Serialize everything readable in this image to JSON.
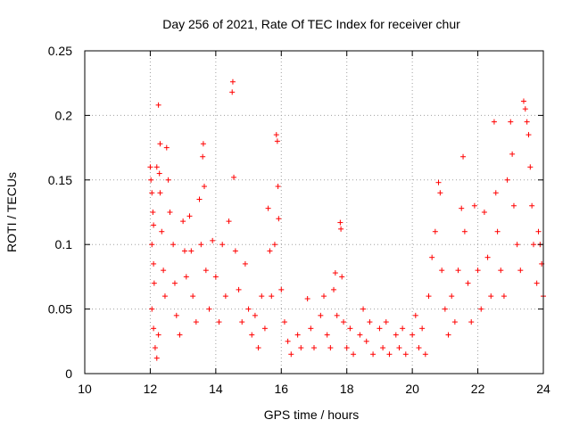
{
  "chart_data": {
    "type": "scatter",
    "title": "Day 256 of 2021, Rate Of TEC Index for receiver chur",
    "xlabel": "GPS time / hours",
    "ylabel": "ROTI / TECUs",
    "xlim": [
      10,
      24
    ],
    "ylim": [
      0,
      0.25
    ],
    "x_ticks": [
      10,
      12,
      14,
      16,
      18,
      20,
      22,
      24
    ],
    "y_ticks": [
      0,
      0.05,
      0.1,
      0.15,
      0.2,
      0.25
    ],
    "x_tick_labels": [
      "10",
      "12",
      "14",
      "16",
      "18",
      "20",
      "22",
      "24"
    ],
    "y_tick_labels": [
      "0",
      "0.05",
      "0.1",
      "0.15",
      "0.2",
      "0.25"
    ],
    "grid": true,
    "marker": "plus",
    "color": "#ff0000",
    "series": [
      {
        "points": [
          [
            12.0,
            0.16
          ],
          [
            12.02,
            0.15
          ],
          [
            12.05,
            0.14
          ],
          [
            12.08,
            0.125
          ],
          [
            12.1,
            0.115
          ],
          [
            12.05,
            0.1
          ],
          [
            12.1,
            0.085
          ],
          [
            12.12,
            0.07
          ],
          [
            12.05,
            0.05
          ],
          [
            12.1,
            0.035
          ],
          [
            12.15,
            0.02
          ],
          [
            12.2,
            0.012
          ],
          [
            12.25,
            0.03
          ],
          [
            12.2,
            0.16
          ],
          [
            12.25,
            0.208
          ],
          [
            12.28,
            0.155
          ],
          [
            12.3,
            0.178
          ],
          [
            12.3,
            0.14
          ],
          [
            12.35,
            0.11
          ],
          [
            12.4,
            0.08
          ],
          [
            12.45,
            0.06
          ],
          [
            12.5,
            0.175
          ],
          [
            12.55,
            0.15
          ],
          [
            12.6,
            0.125
          ],
          [
            12.7,
            0.1
          ],
          [
            12.75,
            0.07
          ],
          [
            12.8,
            0.045
          ],
          [
            12.9,
            0.03
          ],
          [
            13.0,
            0.118
          ],
          [
            13.05,
            0.095
          ],
          [
            13.1,
            0.075
          ],
          [
            13.2,
            0.122
          ],
          [
            13.25,
            0.095
          ],
          [
            13.3,
            0.06
          ],
          [
            13.4,
            0.04
          ],
          [
            13.5,
            0.135
          ],
          [
            13.55,
            0.1
          ],
          [
            13.6,
            0.168
          ],
          [
            13.62,
            0.178
          ],
          [
            13.65,
            0.145
          ],
          [
            13.7,
            0.08
          ],
          [
            13.8,
            0.05
          ],
          [
            13.9,
            0.103
          ],
          [
            14.0,
            0.075
          ],
          [
            14.1,
            0.04
          ],
          [
            14.2,
            0.1
          ],
          [
            14.3,
            0.06
          ],
          [
            14.4,
            0.118
          ],
          [
            14.5,
            0.218
          ],
          [
            14.52,
            0.226
          ],
          [
            14.55,
            0.152
          ],
          [
            14.6,
            0.095
          ],
          [
            14.7,
            0.065
          ],
          [
            14.8,
            0.04
          ],
          [
            14.9,
            0.085
          ],
          [
            15.0,
            0.05
          ],
          [
            15.1,
            0.03
          ],
          [
            15.2,
            0.045
          ],
          [
            15.3,
            0.02
          ],
          [
            15.4,
            0.06
          ],
          [
            15.5,
            0.035
          ],
          [
            15.6,
            0.128
          ],
          [
            15.65,
            0.095
          ],
          [
            15.7,
            0.06
          ],
          [
            15.8,
            0.1
          ],
          [
            15.85,
            0.185
          ],
          [
            15.88,
            0.18
          ],
          [
            15.9,
            0.145
          ],
          [
            15.92,
            0.12
          ],
          [
            16.0,
            0.065
          ],
          [
            16.1,
            0.04
          ],
          [
            16.2,
            0.025
          ],
          [
            16.3,
            0.015
          ],
          [
            16.5,
            0.03
          ],
          [
            16.6,
            0.02
          ],
          [
            16.8,
            0.058
          ],
          [
            16.9,
            0.035
          ],
          [
            17.0,
            0.02
          ],
          [
            17.2,
            0.045
          ],
          [
            17.3,
            0.06
          ],
          [
            17.4,
            0.03
          ],
          [
            17.5,
            0.02
          ],
          [
            17.6,
            0.065
          ],
          [
            17.65,
            0.078
          ],
          [
            17.7,
            0.045
          ],
          [
            17.8,
            0.117
          ],
          [
            17.82,
            0.112
          ],
          [
            17.85,
            0.075
          ],
          [
            17.9,
            0.04
          ],
          [
            18.0,
            0.02
          ],
          [
            18.1,
            0.035
          ],
          [
            18.2,
            0.015
          ],
          [
            18.4,
            0.03
          ],
          [
            18.5,
            0.05
          ],
          [
            18.6,
            0.025
          ],
          [
            18.7,
            0.04
          ],
          [
            18.8,
            0.015
          ],
          [
            19.0,
            0.035
          ],
          [
            19.1,
            0.02
          ],
          [
            19.2,
            0.04
          ],
          [
            19.3,
            0.015
          ],
          [
            19.5,
            0.03
          ],
          [
            19.6,
            0.02
          ],
          [
            19.7,
            0.035
          ],
          [
            19.8,
            0.015
          ],
          [
            20.0,
            0.03
          ],
          [
            20.1,
            0.045
          ],
          [
            20.2,
            0.02
          ],
          [
            20.3,
            0.035
          ],
          [
            20.4,
            0.015
          ],
          [
            20.5,
            0.06
          ],
          [
            20.6,
            0.09
          ],
          [
            20.7,
            0.11
          ],
          [
            20.8,
            0.148
          ],
          [
            20.85,
            0.14
          ],
          [
            20.9,
            0.08
          ],
          [
            21.0,
            0.05
          ],
          [
            21.1,
            0.03
          ],
          [
            21.2,
            0.06
          ],
          [
            21.3,
            0.04
          ],
          [
            21.4,
            0.08
          ],
          [
            21.5,
            0.128
          ],
          [
            21.55,
            0.168
          ],
          [
            21.6,
            0.11
          ],
          [
            21.7,
            0.07
          ],
          [
            21.8,
            0.04
          ],
          [
            21.9,
            0.13
          ],
          [
            22.0,
            0.08
          ],
          [
            22.1,
            0.05
          ],
          [
            22.2,
            0.125
          ],
          [
            22.3,
            0.09
          ],
          [
            22.4,
            0.06
          ],
          [
            22.5,
            0.195
          ],
          [
            22.55,
            0.14
          ],
          [
            22.6,
            0.11
          ],
          [
            22.7,
            0.08
          ],
          [
            22.8,
            0.06
          ],
          [
            22.9,
            0.15
          ],
          [
            23.0,
            0.195
          ],
          [
            23.05,
            0.17
          ],
          [
            23.1,
            0.13
          ],
          [
            23.2,
            0.1
          ],
          [
            23.3,
            0.08
          ],
          [
            23.4,
            0.211
          ],
          [
            23.45,
            0.205
          ],
          [
            23.5,
            0.195
          ],
          [
            23.55,
            0.185
          ],
          [
            23.6,
            0.16
          ],
          [
            23.65,
            0.13
          ],
          [
            23.7,
            0.1
          ],
          [
            23.8,
            0.07
          ],
          [
            23.85,
            0.11
          ],
          [
            23.9,
            0.1
          ],
          [
            23.95,
            0.085
          ],
          [
            24.0,
            0.06
          ]
        ]
      }
    ]
  }
}
